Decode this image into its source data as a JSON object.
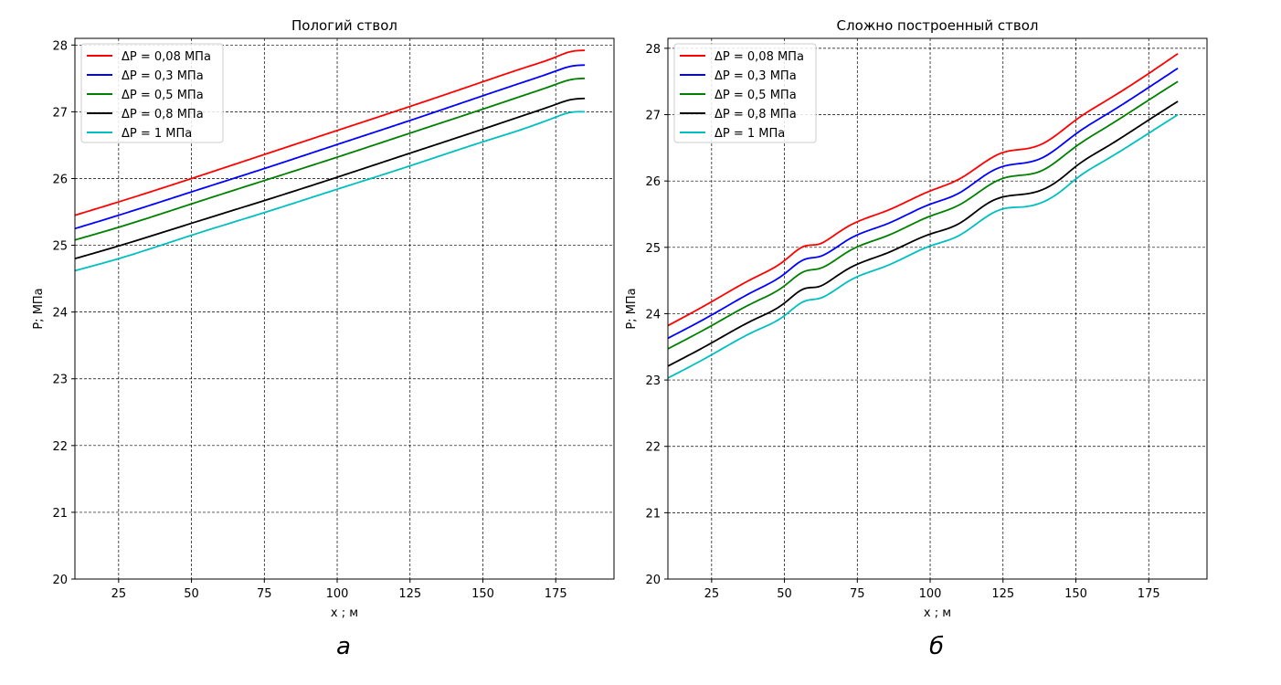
{
  "chart_data": [
    {
      "type": "line",
      "panel_label": "а",
      "title": "Пологий ствол",
      "xlabel": "x ; м",
      "ylabel": "P; МПа",
      "xlim": [
        10,
        195
      ],
      "ylim": [
        20,
        28.1
      ],
      "xticks": [
        25,
        50,
        75,
        100,
        125,
        150,
        175
      ],
      "yticks": [
        20,
        21,
        22,
        23,
        24,
        25,
        26,
        27,
        28
      ],
      "grid": true,
      "legend": "top-left",
      "series": [
        {
          "name": "ΔP = 0,08 МПа",
          "color": "#ff0000",
          "x": [
            10,
            25,
            50,
            75,
            100,
            125,
            150,
            165,
            175,
            180,
            185
          ],
          "y": [
            25.45,
            25.65,
            26.0,
            26.36,
            26.72,
            27.08,
            27.45,
            27.67,
            27.82,
            27.9,
            27.92
          ]
        },
        {
          "name": "ΔP = 0,3 МПа",
          "color": "#0000ff",
          "x": [
            10,
            25,
            50,
            75,
            100,
            125,
            150,
            165,
            175,
            180,
            185
          ],
          "y": [
            25.25,
            25.45,
            25.8,
            26.15,
            26.51,
            26.87,
            27.24,
            27.46,
            27.61,
            27.68,
            27.7
          ]
        },
        {
          "name": "ΔP = 0,5 МПа",
          "color": "#008000",
          "x": [
            10,
            25,
            50,
            75,
            100,
            125,
            150,
            165,
            175,
            180,
            185
          ],
          "y": [
            25.08,
            25.27,
            25.62,
            25.97,
            26.32,
            26.68,
            27.04,
            27.26,
            27.41,
            27.48,
            27.5
          ]
        },
        {
          "name": "ΔP = 0,8 МПа",
          "color": "#000000",
          "x": [
            10,
            25,
            50,
            75,
            100,
            125,
            150,
            165,
            175,
            180,
            185
          ],
          "y": [
            24.8,
            24.99,
            25.33,
            25.67,
            26.02,
            26.38,
            26.74,
            26.96,
            27.11,
            27.18,
            27.2
          ]
        },
        {
          "name": "ΔP = 1 МПа",
          "color": "#00bfbf",
          "x": [
            10,
            25,
            50,
            75,
            100,
            125,
            150,
            165,
            175,
            180,
            185
          ],
          "y": [
            24.62,
            24.8,
            25.15,
            25.49,
            25.84,
            26.19,
            26.55,
            26.76,
            26.92,
            26.99,
            27.0
          ]
        }
      ]
    },
    {
      "type": "line",
      "panel_label": "б",
      "title": "Сложно построенный ствол",
      "xlabel": "x ; м",
      "ylabel": "P; МПа",
      "xlim": [
        10,
        195
      ],
      "ylim": [
        20,
        28.15
      ],
      "xticks": [
        25,
        50,
        75,
        100,
        125,
        150,
        175
      ],
      "yticks": [
        20,
        21,
        22,
        23,
        24,
        25,
        26,
        27,
        28
      ],
      "grid": true,
      "legend": "top-left",
      "series": [
        {
          "name": "ΔP = 0,08 МПа",
          "color": "#ff0000",
          "x": [
            10,
            25,
            40,
            50,
            57,
            62,
            65,
            72,
            85,
            100,
            110,
            120,
            125,
            132,
            138,
            145,
            150,
            160,
            175,
            185
          ],
          "y": [
            23.82,
            24.18,
            24.55,
            24.8,
            25.02,
            25.05,
            25.12,
            25.32,
            25.55,
            25.85,
            26.03,
            26.32,
            26.43,
            26.48,
            26.55,
            26.75,
            26.92,
            27.2,
            27.62,
            27.92
          ]
        },
        {
          "name": "ΔP = 0,3 МПа",
          "color": "#0000ff",
          "x": [
            10,
            25,
            40,
            50,
            57,
            62,
            65,
            72,
            85,
            100,
            110,
            120,
            125,
            132,
            138,
            145,
            150,
            160,
            175,
            185
          ],
          "y": [
            23.63,
            23.98,
            24.35,
            24.6,
            24.82,
            24.86,
            24.92,
            25.12,
            25.35,
            25.65,
            25.82,
            26.12,
            26.22,
            26.27,
            26.34,
            26.54,
            26.71,
            26.99,
            27.41,
            27.7
          ]
        },
        {
          "name": "ΔP = 0,5 МПа",
          "color": "#008000",
          "x": [
            10,
            25,
            40,
            50,
            57,
            62,
            65,
            72,
            85,
            100,
            110,
            120,
            125,
            132,
            138,
            145,
            150,
            160,
            175,
            185
          ],
          "y": [
            23.47,
            23.82,
            24.18,
            24.42,
            24.64,
            24.68,
            24.74,
            24.94,
            25.17,
            25.47,
            25.64,
            25.93,
            26.04,
            26.09,
            26.15,
            26.35,
            26.52,
            26.8,
            27.22,
            27.5
          ]
        },
        {
          "name": "ΔP = 0,8 МПа",
          "color": "#000000",
          "x": [
            10,
            25,
            40,
            50,
            57,
            62,
            65,
            72,
            85,
            100,
            110,
            120,
            125,
            132,
            138,
            145,
            150,
            160,
            175,
            185
          ],
          "y": [
            23.21,
            23.56,
            23.92,
            24.16,
            24.38,
            24.41,
            24.48,
            24.68,
            24.91,
            25.2,
            25.36,
            25.67,
            25.76,
            25.8,
            25.86,
            26.04,
            26.22,
            26.5,
            26.92,
            27.2
          ]
        },
        {
          "name": "ΔP = 1 МПа",
          "color": "#00bfbf",
          "x": [
            10,
            25,
            40,
            50,
            57,
            62,
            65,
            72,
            85,
            100,
            110,
            120,
            125,
            132,
            138,
            145,
            150,
            160,
            175,
            185
          ],
          "y": [
            23.03,
            23.38,
            23.74,
            23.97,
            24.19,
            24.23,
            24.29,
            24.49,
            24.72,
            25.02,
            25.18,
            25.48,
            25.58,
            25.61,
            25.67,
            25.85,
            26.03,
            26.31,
            26.72,
            27.0
          ]
        }
      ]
    }
  ]
}
